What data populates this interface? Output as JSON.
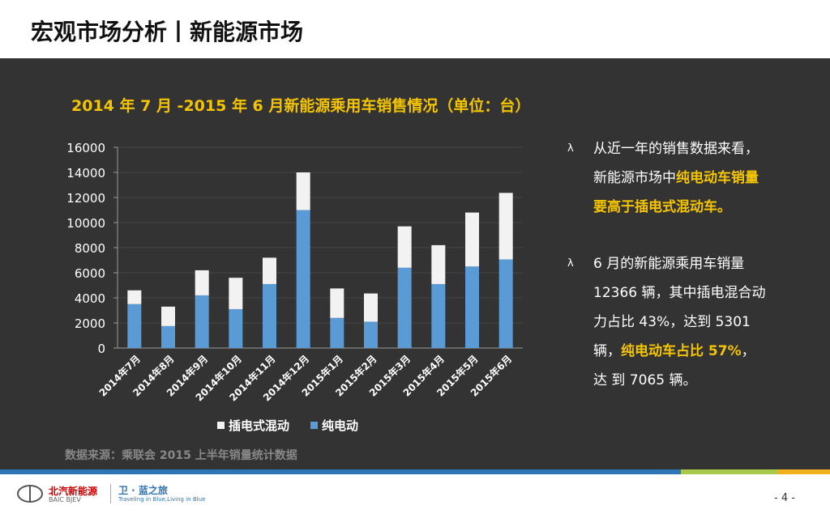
{
  "header": {
    "title": "宏观市场分析丨新能源市场"
  },
  "chart_data": {
    "type": "stacked_bar",
    "title": "2014 年 7 月 -2015 年 6 月新能源乘用车销售情况（单位：台）",
    "categories": [
      "2014年7月",
      "2014年8月",
      "2014年9月",
      "2014年10月",
      "2014年11月",
      "2014年12月",
      "2015年1月",
      "2015年2月",
      "2015年3月",
      "2015年4月",
      "2015年5月",
      "2015年6月"
    ],
    "series": [
      {
        "name": "纯电动",
        "color": "#5b9bd5",
        "values": [
          3500,
          1750,
          4200,
          3100,
          5100,
          11000,
          2400,
          2100,
          6400,
          5100,
          6500,
          7065
        ]
      },
      {
        "name": "插电式混动",
        "color": "#f2f2f2",
        "values": [
          1100,
          1550,
          2000,
          2500,
          2100,
          3000,
          2350,
          2250,
          3300,
          3100,
          4300,
          5301
        ]
      }
    ],
    "ylim": [
      0,
      16000
    ],
    "yticks": [
      0,
      2000,
      4000,
      6000,
      8000,
      10000,
      12000,
      14000,
      16000
    ],
    "grid": true,
    "legend": "bottom"
  },
  "source": "数据来源：乘联会 2015 上半年销量统计数据",
  "bullets": [
    {
      "marker": "λ",
      "lines": [
        [
          {
            "text": "从近一年的销售数据来看，",
            "highlight": false
          }
        ],
        [
          {
            "text": "新能源市场中",
            "highlight": false
          },
          {
            "text": "纯电动车销量",
            "highlight": true
          }
        ],
        [
          {
            "text": "要高于插电式混动车。",
            "highlight": true
          }
        ]
      ]
    },
    {
      "marker": "λ",
      "lines": [
        [
          {
            "text": "6 月的新能源乘用车销量",
            "highlight": false
          }
        ],
        [
          {
            "text": "12366 辆，其中插电混合动",
            "highlight": false
          }
        ],
        [
          {
            "text": "力占比 43%，达到 5301",
            "highlight": false
          }
        ],
        [
          {
            "text": "辆，",
            "highlight": false
          },
          {
            "text": "纯电动车占比 57%",
            "highlight": true
          },
          {
            "text": "，",
            "highlight": false
          }
        ],
        [
          {
            "text": "达 到 7065 辆。",
            "highlight": false
          }
        ]
      ]
    }
  ],
  "footer": {
    "brand": "北汽新能源",
    "brand_en": "BAIC BJEV",
    "slogan": "卫 · 蓝之旅",
    "slogan_en": "Traveling in Blue,Living in Blue",
    "page": "- 4 -"
  }
}
